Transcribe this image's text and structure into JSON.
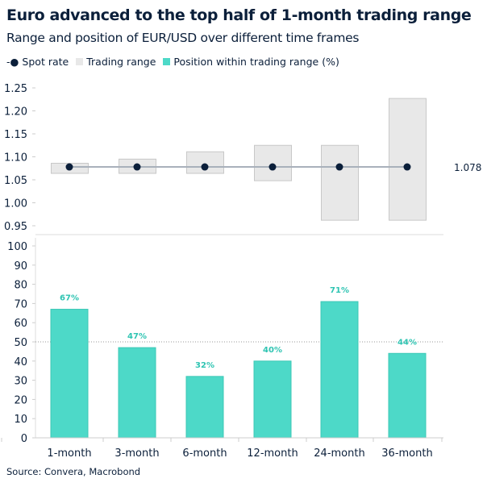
{
  "title": "Euro advanced to the top half of 1-month trading range",
  "subtitle": "Range and position of EUR/USD over different time frames",
  "legend": [
    {
      "label": "Spot rate",
      "color": "#0b1f3a"
    },
    {
      "label": "Trading range",
      "color": "#e8e8e8"
    },
    {
      "label": "Position within trading range (%)",
      "color": "#4dd9c8"
    }
  ],
  "source": "Source: Convera, Macrobond",
  "chart_data": [
    {
      "type": "range",
      "categories": [
        "1-month",
        "3-month",
        "6-month",
        "12-month",
        "24-month",
        "36-month"
      ],
      "series": [
        {
          "name": "Trading range",
          "low": [
            1.064,
            1.064,
            1.064,
            1.048,
            0.962,
            0.962
          ],
          "high": [
            1.086,
            1.095,
            1.111,
            1.125,
            1.125,
            1.227
          ],
          "color": "#e8e8e8"
        },
        {
          "name": "Spot rate",
          "values": [
            1.078,
            1.078,
            1.078,
            1.078,
            1.078,
            1.078
          ],
          "color": "#0b1f3a"
        }
      ],
      "spot_label": "1.078",
      "ylim": [
        0.95,
        1.25
      ],
      "yticks": [
        "0.95",
        "1.00",
        "1.05",
        "1.10",
        "1.15",
        "1.20",
        "1.25"
      ]
    },
    {
      "type": "bar",
      "categories": [
        "1-month",
        "3-month",
        "6-month",
        "12-month",
        "24-month",
        "36-month"
      ],
      "series": [
        {
          "name": "Position within trading range (%)",
          "values": [
            67,
            47,
            32,
            40,
            71,
            44
          ],
          "labels": [
            "67%",
            "47%",
            "32%",
            "40%",
            "71%",
            "44%"
          ],
          "color": "#4dd9c8"
        }
      ],
      "ylim": [
        0,
        100
      ],
      "yticks": [
        "0",
        "10",
        "20",
        "30",
        "40",
        "50",
        "60",
        "70",
        "80",
        "90",
        "100"
      ],
      "reference_line": 50
    }
  ]
}
